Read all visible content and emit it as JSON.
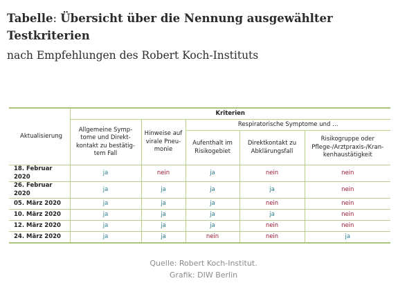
{
  "heading": {
    "title_prefix": "Tabelle",
    "title_sep": ": ",
    "title_rest": "Übersicht über die Nennung ausgewählter Testkriterien",
    "subtitle": "nach Empfehlungen des Robert Koch-Instituts"
  },
  "table": {
    "row_header": "Aktualisierung",
    "group_header": "Kriterien",
    "subgroup_header": "Respiratorische Symptome und …",
    "columns": [
      "Allgemeine Symp-\ntome und Direkt-\nkontakt zu bestätig-\ntem Fall",
      "Hinweise auf\nvirale Pneu-\nmonie",
      "Aufenthalt im\nRisikogebiet",
      "Direktkontakt zu\nAbklärungsfall",
      "Risikogruppe oder\nPflege-/Arztpraxis-/Kran-\nkenhaustätigkeit"
    ],
    "rows": [
      {
        "date": "18. Februar 2020",
        "values": [
          "ja",
          "nein",
          "ja",
          "nein",
          "nein"
        ]
      },
      {
        "date": "26. Februar 2020",
        "values": [
          "ja",
          "ja",
          "ja",
          "ja",
          "nein"
        ]
      },
      {
        "date": "05. März 2020",
        "values": [
          "ja",
          "ja",
          "ja",
          "nein",
          "nein"
        ]
      },
      {
        "date": "10. März 2020",
        "values": [
          "ja",
          "ja",
          "ja",
          "ja",
          "nein"
        ]
      },
      {
        "date": "12. März 2020",
        "values": [
          "ja",
          "ja",
          "ja",
          "nein",
          "nein"
        ]
      },
      {
        "date": "24. März 2020",
        "values": [
          "ja",
          "ja",
          "nein",
          "nein",
          "ja"
        ]
      }
    ]
  },
  "footer": {
    "source": "Quelle: Robert Koch-Institut.",
    "credit": "Grafik: DIW Berlin"
  },
  "colors": {
    "ja": "#2e7f93",
    "nein": "#9b1a2e",
    "rule": "#b8d08c"
  }
}
